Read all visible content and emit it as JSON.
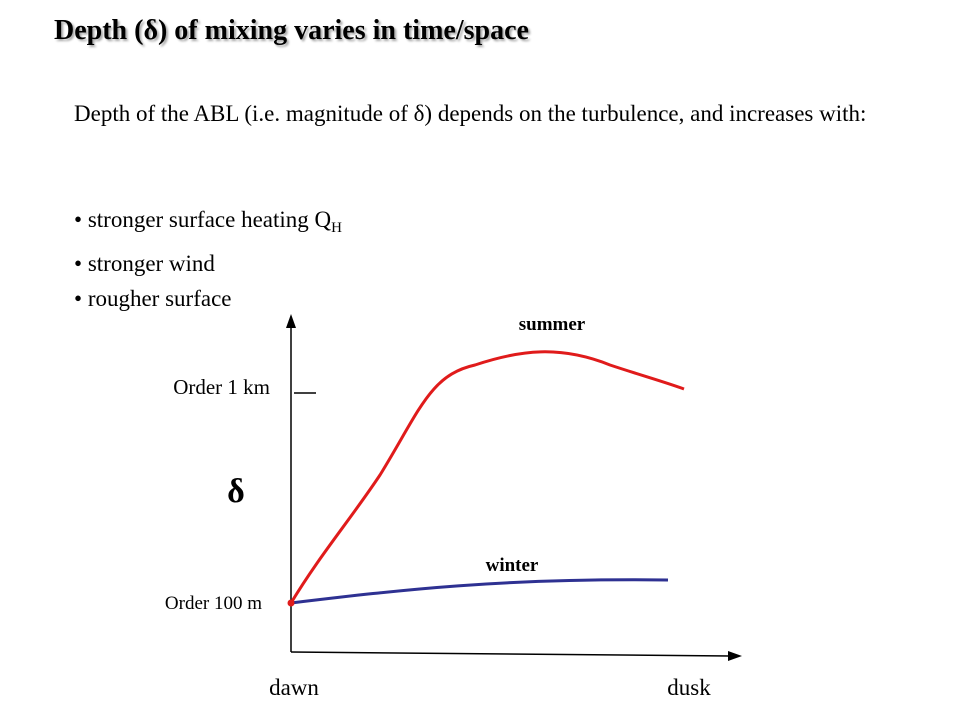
{
  "title": "Depth (δ) of mixing varies in time/space",
  "intro": "Depth of the ABL (i.e. magnitude of δ) depends on the turbulence, and increases with:",
  "bullets": [
    {
      "text": "stronger surface heating Q",
      "sub": "H"
    },
    {
      "text": "stronger wind",
      "sub": ""
    },
    {
      "text": "rougher surface",
      "sub": ""
    }
  ],
  "diagram": {
    "y_symbol": "δ",
    "y_tick_high": "Order 1 km",
    "y_tick_low": "Order 100 m",
    "x_start": "dawn",
    "x_end": "dusk",
    "summer_label": "summer",
    "winter_label": "winter",
    "summer_color": "#e01b1b",
    "winter_color": "#2e3192"
  }
}
